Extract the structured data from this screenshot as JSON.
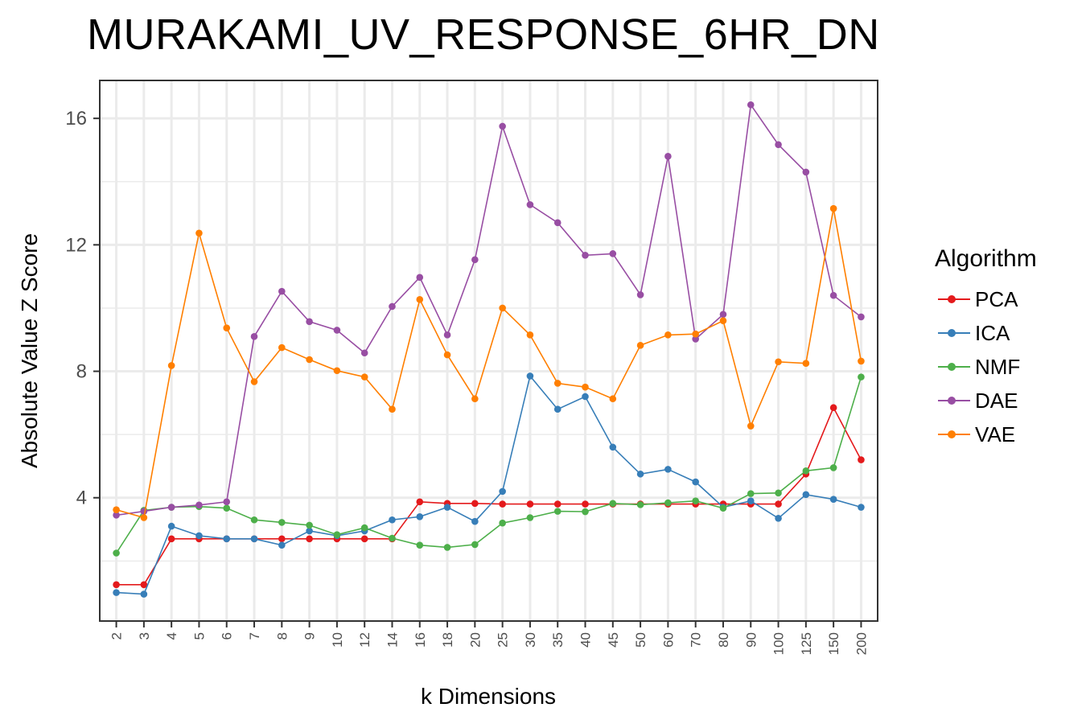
{
  "chart_data": {
    "type": "line",
    "title": "MURAKAMI_UV_RESPONSE_6HR_DN",
    "xlabel": "k Dimensions",
    "ylabel": "Absolute Value Z Score",
    "categories": [
      "2",
      "3",
      "4",
      "5",
      "6",
      "7",
      "8",
      "9",
      "10",
      "12",
      "14",
      "16",
      "18",
      "20",
      "25",
      "30",
      "35",
      "40",
      "45",
      "50",
      "60",
      "70",
      "80",
      "90",
      "100",
      "125",
      "150",
      "200"
    ],
    "ylim": [
      0.1,
      17.2
    ],
    "yticks": [
      4,
      8,
      12,
      16
    ],
    "grid": true,
    "legend_title": "Algorithm",
    "legend_position": "right",
    "series": [
      {
        "name": "PCA",
        "color": "#E41A1C",
        "values": [
          1.25,
          1.25,
          2.7,
          2.7,
          2.7,
          2.7,
          2.7,
          2.7,
          2.7,
          2.7,
          2.7,
          3.87,
          3.82,
          3.82,
          3.8,
          3.8,
          3.8,
          3.8,
          3.8,
          3.8,
          3.8,
          3.8,
          3.8,
          3.8,
          3.8,
          4.75,
          6.85,
          5.2
        ]
      },
      {
        "name": "ICA",
        "color": "#377EB8",
        "values": [
          1.0,
          0.95,
          3.1,
          2.8,
          2.7,
          2.7,
          2.5,
          2.95,
          2.8,
          2.95,
          3.3,
          3.4,
          3.7,
          3.25,
          4.2,
          7.85,
          6.8,
          7.2,
          5.6,
          4.75,
          4.9,
          4.5,
          3.7,
          3.9,
          3.35,
          4.1,
          3.95,
          3.7
        ]
      },
      {
        "name": "NMF",
        "color": "#4DAF4A",
        "values": [
          2.25,
          3.6,
          3.7,
          3.72,
          3.67,
          3.3,
          3.22,
          3.13,
          2.83,
          3.05,
          2.72,
          2.5,
          2.43,
          2.52,
          3.2,
          3.37,
          3.57,
          3.56,
          3.82,
          3.78,
          3.84,
          3.9,
          3.67,
          4.13,
          4.15,
          4.85,
          4.95,
          7.82
        ]
      },
      {
        "name": "DAE",
        "color": "#984EA3",
        "values": [
          3.45,
          3.57,
          3.7,
          3.77,
          3.87,
          9.1,
          10.53,
          9.57,
          9.3,
          8.58,
          10.05,
          10.97,
          9.15,
          11.53,
          15.75,
          13.27,
          12.7,
          11.67,
          11.72,
          10.42,
          14.8,
          9.02,
          9.8,
          16.43,
          15.17,
          14.3,
          10.4,
          9.72
        ]
      },
      {
        "name": "VAE",
        "color": "#FF7F00",
        "values": [
          3.62,
          3.37,
          8.18,
          12.37,
          9.37,
          7.67,
          8.75,
          8.37,
          8.02,
          7.82,
          6.8,
          10.27,
          8.52,
          7.13,
          10.0,
          9.15,
          7.62,
          7.5,
          7.13,
          8.82,
          9.15,
          9.18,
          9.6,
          6.27,
          8.3,
          8.25,
          13.15,
          8.32
        ]
      }
    ]
  }
}
